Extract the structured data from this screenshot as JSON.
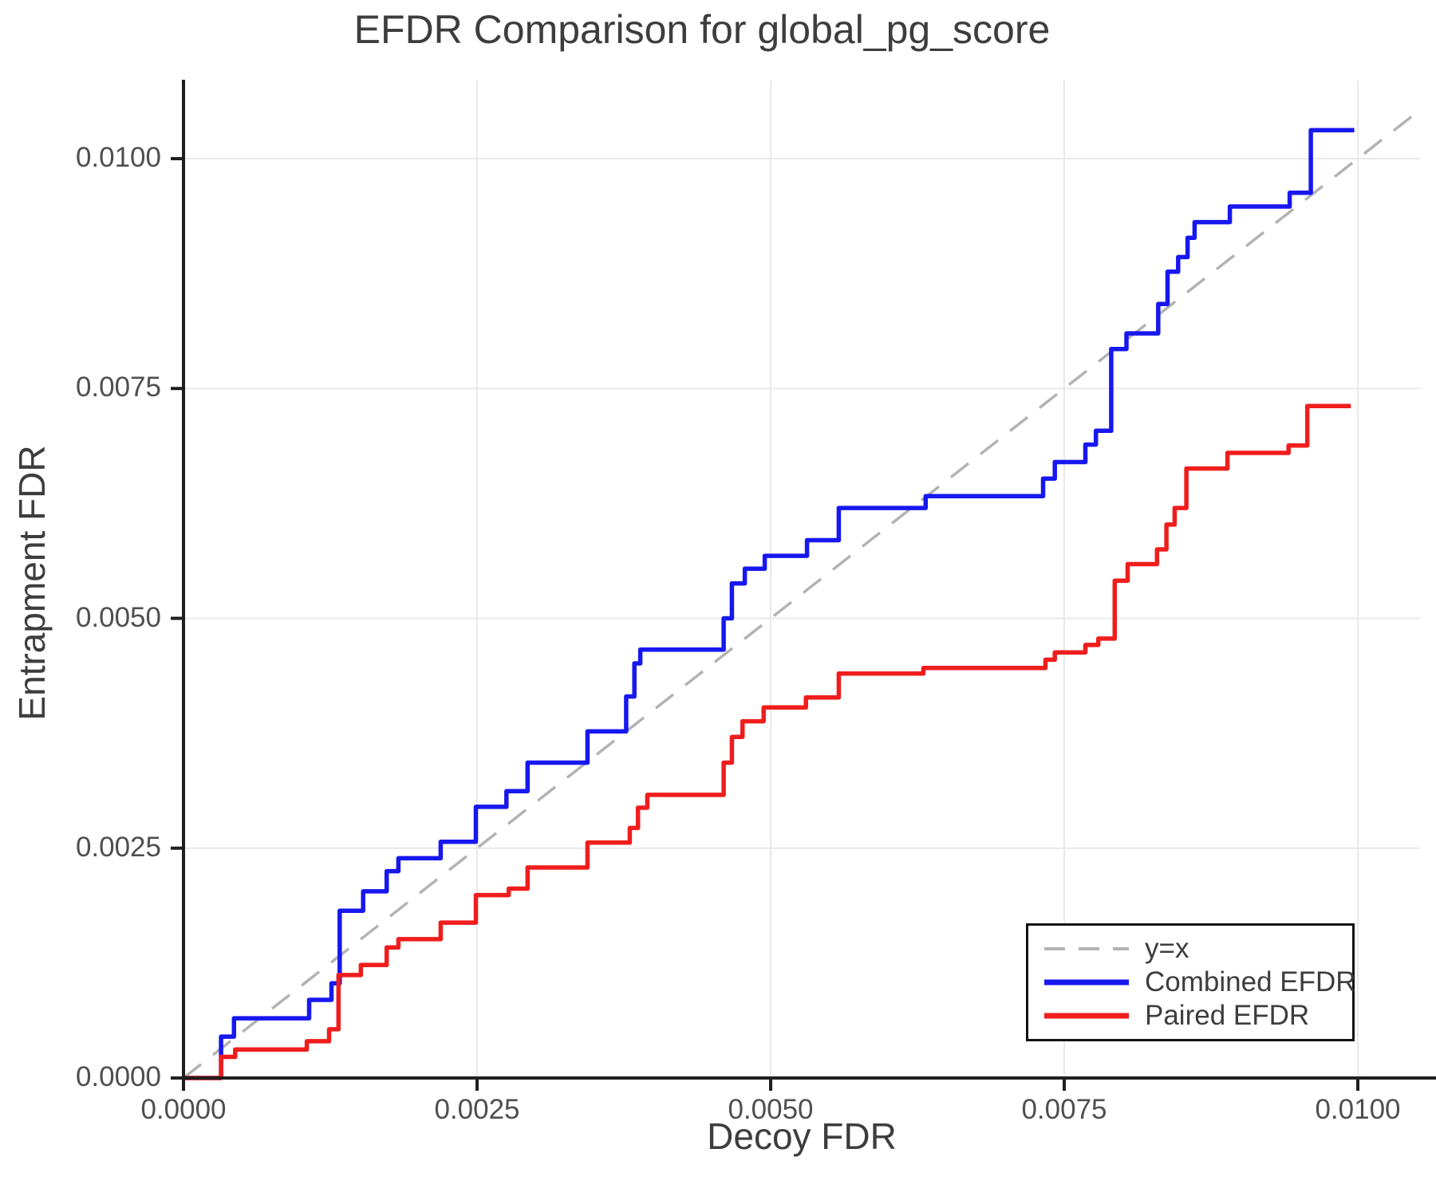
{
  "title": "EFDR Comparison for global_pg_score",
  "x_axis": {
    "label": "Decoy FDR",
    "ticks": [
      "0.0000",
      "0.0025",
      "0.0050",
      "0.0075",
      "0.0100"
    ],
    "tick_values": [
      0,
      0.0025,
      0.005,
      0.0075,
      0.01
    ]
  },
  "y_axis": {
    "label": "Entrapment FDR",
    "ticks": [
      "0.0000",
      "0.0025",
      "0.0050",
      "0.0075",
      "0.0100"
    ],
    "tick_values": [
      0,
      0.0025,
      0.005,
      0.0075,
      0.01
    ]
  },
  "legend": {
    "items": [
      {
        "label": "y=x",
        "color": "#b3b3b3",
        "dashed": true
      },
      {
        "label": "Combined EFDR",
        "color": "#1717ef",
        "dashed": false
      },
      {
        "label": "Paired EFDR",
        "color": "#f01d1d",
        "dashed": false
      }
    ]
  },
  "colors": {
    "grid": "#e9e9e9",
    "spine": "#1f1f1f",
    "identity": "#b3b3b3",
    "combined": "#1717ef",
    "paired": "#f01d1d"
  },
  "chart_data": {
    "type": "line",
    "title": "EFDR Comparison for global_pg_score",
    "xlabel": "Decoy FDR",
    "ylabel": "Entrapment FDR",
    "xlim": [
      0,
      0.01053
    ],
    "ylim": [
      0,
      0.01085
    ],
    "grid": true,
    "legend_position": "lower right",
    "series": [
      {
        "name": "y=x",
        "style": "dashed",
        "step": false,
        "color": "#b3b3b3",
        "points": [
          [
            0,
            0
          ],
          [
            0.0105,
            0.0105
          ]
        ]
      },
      {
        "name": "Combined EFDR",
        "style": "solid",
        "step": true,
        "color": "#1717ef",
        "points": [
          [
            0,
            0
          ],
          [
            0.00032,
            0.00045
          ],
          [
            0.00043,
            0.00065
          ],
          [
            0.00107,
            0.00085
          ],
          [
            0.00126,
            0.00103
          ],
          [
            0.00133,
            0.00182
          ],
          [
            0.00153,
            0.00203
          ],
          [
            0.00173,
            0.00225
          ],
          [
            0.00183,
            0.00239
          ],
          [
            0.00219,
            0.00257
          ],
          [
            0.00249,
            0.00295
          ],
          [
            0.00275,
            0.00312
          ],
          [
            0.00293,
            0.00343
          ],
          [
            0.00344,
            0.00377
          ],
          [
            0.00377,
            0.00415
          ],
          [
            0.00384,
            0.00451
          ],
          [
            0.00389,
            0.00466
          ],
          [
            0.0046,
            0.005
          ],
          [
            0.00467,
            0.00538
          ],
          [
            0.00478,
            0.00554
          ],
          [
            0.00495,
            0.00568
          ],
          [
            0.00531,
            0.00585
          ],
          [
            0.00558,
            0.0062
          ],
          [
            0.00632,
            0.00633
          ],
          [
            0.00732,
            0.00652
          ],
          [
            0.00742,
            0.0067
          ],
          [
            0.00768,
            0.00689
          ],
          [
            0.00777,
            0.00704
          ],
          [
            0.0079,
            0.00793
          ],
          [
            0.00803,
            0.0081
          ],
          [
            0.0083,
            0.00842
          ],
          [
            0.00838,
            0.00877
          ],
          [
            0.00847,
            0.00893
          ],
          [
            0.00855,
            0.00914
          ],
          [
            0.00861,
            0.00931
          ],
          [
            0.00891,
            0.00948
          ],
          [
            0.00942,
            0.00963
          ],
          [
            0.0096,
            0.01031
          ],
          [
            0.00997,
            0.01031
          ]
        ]
      },
      {
        "name": "Paired EFDR",
        "style": "solid",
        "step": true,
        "color": "#f01d1d",
        "points": [
          [
            0,
            0
          ],
          [
            0.00032,
            0.00023
          ],
          [
            0.00044,
            0.00031
          ],
          [
            0.00105,
            0.0004
          ],
          [
            0.00124,
            0.00053
          ],
          [
            0.00132,
            0.00112
          ],
          [
            0.00151,
            0.00123
          ],
          [
            0.00173,
            0.00142
          ],
          [
            0.00183,
            0.00151
          ],
          [
            0.00219,
            0.00169
          ],
          [
            0.00249,
            0.00199
          ],
          [
            0.00277,
            0.00206
          ],
          [
            0.00293,
            0.00229
          ],
          [
            0.00344,
            0.00256
          ],
          [
            0.0038,
            0.00272
          ],
          [
            0.00387,
            0.00294
          ],
          [
            0.00395,
            0.00308
          ],
          [
            0.0046,
            0.00343
          ],
          [
            0.00467,
            0.00371
          ],
          [
            0.00476,
            0.00388
          ],
          [
            0.00494,
            0.00403
          ],
          [
            0.0053,
            0.00414
          ],
          [
            0.00558,
            0.0044
          ],
          [
            0.0063,
            0.00446
          ],
          [
            0.00734,
            0.00455
          ],
          [
            0.00742,
            0.00463
          ],
          [
            0.00768,
            0.00471
          ],
          [
            0.00779,
            0.00478
          ],
          [
            0.00793,
            0.00541
          ],
          [
            0.00804,
            0.00559
          ],
          [
            0.00829,
            0.00575
          ],
          [
            0.00837,
            0.00602
          ],
          [
            0.00844,
            0.0062
          ],
          [
            0.00854,
            0.00663
          ],
          [
            0.00889,
            0.0068
          ],
          [
            0.00941,
            0.00688
          ],
          [
            0.00957,
            0.00731
          ],
          [
            0.00994,
            0.00731
          ]
        ]
      }
    ]
  }
}
